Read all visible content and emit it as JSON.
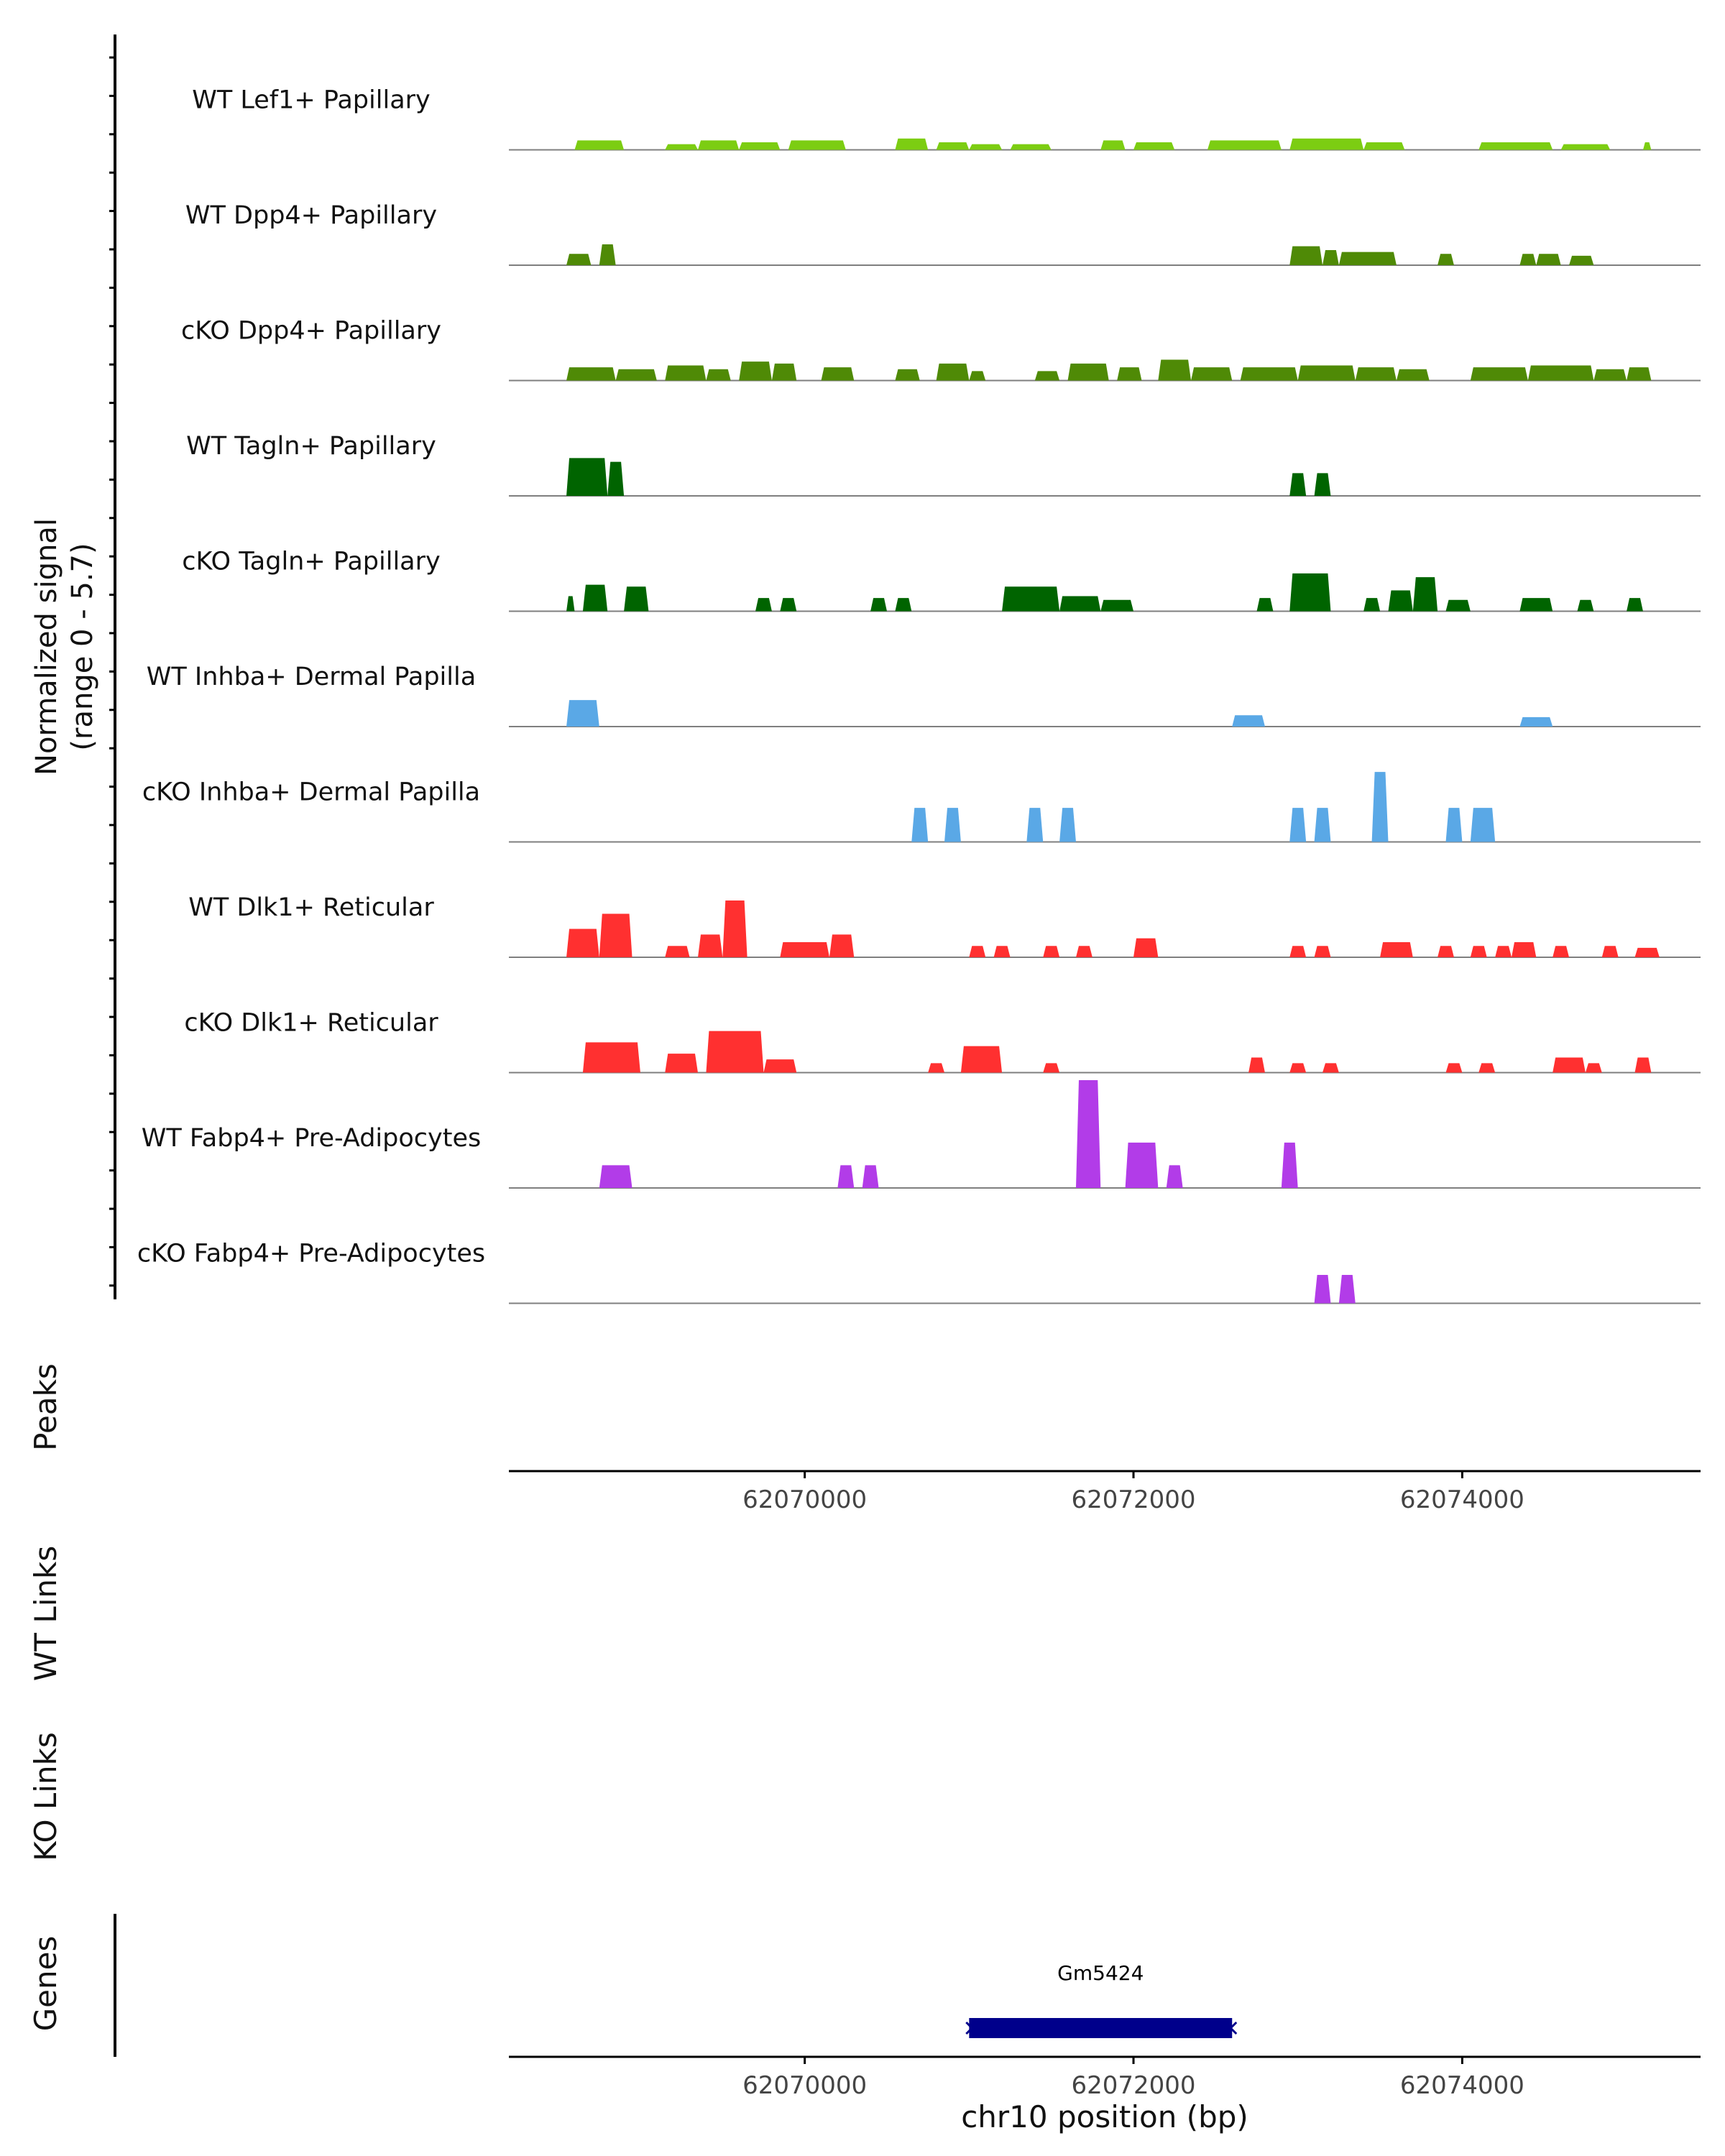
{
  "chart_data": {
    "type": "area",
    "title": "",
    "ylabel": "Normalized signal",
    "ylabel_range": "(range 0 - 5.7)",
    "ylim": [
      0,
      5.7
    ],
    "xlabel": "chr10 position (bp)",
    "xlim": [
      62068200,
      62075450
    ],
    "x_ticks": [
      62070000,
      62072000,
      62074000
    ],
    "x_tick_labels": [
      "62070000",
      "62072000",
      "62074000"
    ],
    "panel_labels": {
      "peaks": "Peaks",
      "wt_links": "WT Links",
      "ko_links": "KO Links",
      "genes": "Genes"
    },
    "tracks": [
      {
        "name": "WT Lef1+ Papillary",
        "color": "#7ccd12",
        "segments": [
          [
            62068600,
            62068900,
            0.5
          ],
          [
            62069150,
            62069350,
            0.3
          ],
          [
            62069350,
            62069600,
            0.5
          ],
          [
            62069600,
            62069850,
            0.4
          ],
          [
            62069900,
            62070250,
            0.5
          ],
          [
            62070550,
            62070750,
            0.6
          ],
          [
            62070800,
            62071000,
            0.4
          ],
          [
            62071000,
            62071200,
            0.3
          ],
          [
            62071250,
            62071500,
            0.3
          ],
          [
            62071800,
            62071950,
            0.5
          ],
          [
            62072000,
            62072250,
            0.4
          ],
          [
            62072450,
            62072900,
            0.5
          ],
          [
            62072950,
            62073400,
            0.6
          ],
          [
            62073400,
            62073650,
            0.4
          ],
          [
            62074100,
            62074550,
            0.4
          ],
          [
            62074600,
            62074900,
            0.3
          ],
          [
            62075100,
            62075150,
            0.4
          ]
        ]
      },
      {
        "name": "WT Dpp4+ Papillary",
        "color": "#4f8a06",
        "segments": [
          [
            62068550,
            62068700,
            0.6
          ],
          [
            62068750,
            62068850,
            1.1
          ],
          [
            62072950,
            62073150,
            1.0
          ],
          [
            62073150,
            62073250,
            0.8
          ],
          [
            62073250,
            62073600,
            0.7
          ],
          [
            62073850,
            62073950,
            0.6
          ],
          [
            62074350,
            62074450,
            0.6
          ],
          [
            62074450,
            62074600,
            0.6
          ],
          [
            62074650,
            62074800,
            0.5
          ]
        ]
      },
      {
        "name": "cKO Dpp4+ Papillary",
        "color": "#4f8a06",
        "segments": [
          [
            62068550,
            62068850,
            0.7
          ],
          [
            62068850,
            62069100,
            0.6
          ],
          [
            62069150,
            62069400,
            0.8
          ],
          [
            62069400,
            62069550,
            0.6
          ],
          [
            62069600,
            62069800,
            1.0
          ],
          [
            62069800,
            62069950,
            0.9
          ],
          [
            62070100,
            62070300,
            0.7
          ],
          [
            62070550,
            62070700,
            0.6
          ],
          [
            62070800,
            62071000,
            0.9
          ],
          [
            62071000,
            62071100,
            0.5
          ],
          [
            62071400,
            62071550,
            0.5
          ],
          [
            62071600,
            62071850,
            0.9
          ],
          [
            62071900,
            62072050,
            0.7
          ],
          [
            62072150,
            62072350,
            1.1
          ],
          [
            62072350,
            62072600,
            0.7
          ],
          [
            62072650,
            62073000,
            0.7
          ],
          [
            62073000,
            62073350,
            0.8
          ],
          [
            62073350,
            62073600,
            0.7
          ],
          [
            62073600,
            62073800,
            0.6
          ],
          [
            62074050,
            62074400,
            0.7
          ],
          [
            62074400,
            62074800,
            0.8
          ],
          [
            62074800,
            62075000,
            0.6
          ],
          [
            62075000,
            62075150,
            0.7
          ]
        ]
      },
      {
        "name": "WT Tagln+ Papillary",
        "color": "#006400",
        "segments": [
          [
            62068550,
            62068800,
            2.0
          ],
          [
            62068800,
            62068900,
            1.8
          ],
          [
            62072950,
            62073050,
            1.2
          ],
          [
            62073100,
            62073200,
            1.2
          ]
        ]
      },
      {
        "name": "cKO Tagln+ Papillary",
        "color": "#006400",
        "segments": [
          [
            62068550,
            62068600,
            0.8
          ],
          [
            62068650,
            62068800,
            1.4
          ],
          [
            62068900,
            62069050,
            1.3
          ],
          [
            62069700,
            62069800,
            0.7
          ],
          [
            62069850,
            62069950,
            0.7
          ],
          [
            62070400,
            62070500,
            0.7
          ],
          [
            62070550,
            62070650,
            0.7
          ],
          [
            62071200,
            62071550,
            1.3
          ],
          [
            62071550,
            62071800,
            0.8
          ],
          [
            62071800,
            62072000,
            0.6
          ],
          [
            62072750,
            62072850,
            0.7
          ],
          [
            62072950,
            62073200,
            2.0
          ],
          [
            62073400,
            62073500,
            0.7
          ],
          [
            62073550,
            62073700,
            1.1
          ],
          [
            62073700,
            62073850,
            1.8
          ],
          [
            62073900,
            62074050,
            0.6
          ],
          [
            62074350,
            62074550,
            0.7
          ],
          [
            62074700,
            62074800,
            0.6
          ],
          [
            62075000,
            62075100,
            0.7
          ]
        ]
      },
      {
        "name": "WT Inhba+ Dermal Papilla",
        "color": "#5aa8e6",
        "segments": [
          [
            62068550,
            62068750,
            1.4
          ],
          [
            62072600,
            62072800,
            0.6
          ],
          [
            62074350,
            62074550,
            0.5
          ]
        ]
      },
      {
        "name": "cKO Inhba+ Dermal Papilla",
        "color": "#5aa8e6",
        "segments": [
          [
            62070650,
            62070750,
            1.8
          ],
          [
            62070850,
            62070950,
            1.8
          ],
          [
            62071350,
            62071450,
            1.8
          ],
          [
            62071550,
            62071650,
            1.8
          ],
          [
            62072950,
            62073050,
            1.8
          ],
          [
            62073100,
            62073200,
            1.8
          ],
          [
            62073450,
            62073550,
            3.7
          ],
          [
            62073900,
            62074000,
            1.8
          ],
          [
            62074050,
            62074200,
            1.8
          ]
        ]
      },
      {
        "name": "WT Dlk1+ Reticular",
        "color": "#ff3030",
        "segments": [
          [
            62068550,
            62068750,
            1.5
          ],
          [
            62068750,
            62068950,
            2.3
          ],
          [
            62069150,
            62069300,
            0.6
          ],
          [
            62069350,
            62069500,
            1.2
          ],
          [
            62069500,
            62069650,
            3.0
          ],
          [
            62069850,
            62070150,
            0.8
          ],
          [
            62070150,
            62070300,
            1.2
          ],
          [
            62071000,
            62071100,
            0.6
          ],
          [
            62071150,
            62071250,
            0.6
          ],
          [
            62071450,
            62071550,
            0.6
          ],
          [
            62071650,
            62071750,
            0.6
          ],
          [
            62072000,
            62072150,
            1.0
          ],
          [
            62072950,
            62073050,
            0.6
          ],
          [
            62073100,
            62073200,
            0.6
          ],
          [
            62073500,
            62073700,
            0.8
          ],
          [
            62073850,
            62073950,
            0.6
          ],
          [
            62074050,
            62074150,
            0.6
          ],
          [
            62074200,
            62074300,
            0.6
          ],
          [
            62074300,
            62074450,
            0.8
          ],
          [
            62074550,
            62074650,
            0.6
          ],
          [
            62074850,
            62074950,
            0.6
          ],
          [
            62075050,
            62075200,
            0.5
          ]
        ]
      },
      {
        "name": "cKO Dlk1+ Reticular",
        "color": "#ff3030",
        "segments": [
          [
            62068650,
            62069000,
            1.6
          ],
          [
            62069150,
            62069350,
            1.0
          ],
          [
            62069400,
            62069750,
            2.2
          ],
          [
            62069750,
            62069950,
            0.7
          ],
          [
            62070750,
            62070850,
            0.5
          ],
          [
            62070950,
            62071200,
            1.4
          ],
          [
            62071450,
            62071550,
            0.5
          ],
          [
            62072700,
            62072800,
            0.8
          ],
          [
            62072950,
            62073050,
            0.5
          ],
          [
            62073150,
            62073250,
            0.5
          ],
          [
            62073900,
            62074000,
            0.5
          ],
          [
            62074100,
            62074200,
            0.5
          ],
          [
            62074550,
            62074750,
            0.8
          ],
          [
            62074750,
            62074850,
            0.5
          ],
          [
            62075050,
            62075150,
            0.8
          ]
        ]
      },
      {
        "name": "WT Fabp4+ Pre-Adipocytes",
        "color": "#b23ce8",
        "segments": [
          [
            62068750,
            62068950,
            1.2
          ],
          [
            62070200,
            62070300,
            1.2
          ],
          [
            62070350,
            62070450,
            1.2
          ],
          [
            62071650,
            62071800,
            5.7
          ],
          [
            62071950,
            62072150,
            2.4
          ],
          [
            62072200,
            62072300,
            1.2
          ],
          [
            62072900,
            62073000,
            2.4
          ]
        ]
      },
      {
        "name": "cKO Fabp4+ Pre-Adipocytes",
        "color": "#b23ce8",
        "segments": [
          [
            62073100,
            62073200,
            1.5
          ],
          [
            62073250,
            62073350,
            1.5
          ]
        ]
      }
    ],
    "genes": [
      {
        "name": "Gm5424",
        "start": 62071000,
        "end": 62072600,
        "strand": "-",
        "color": "#00008b"
      }
    ]
  }
}
